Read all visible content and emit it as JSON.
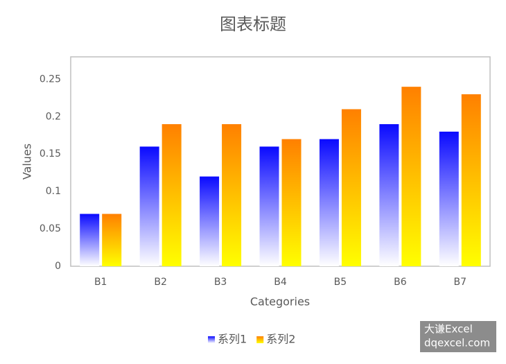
{
  "chart_data": {
    "type": "bar",
    "title": "图表标题",
    "x_label": "Categories",
    "y_label": "Values",
    "categories": [
      "B1",
      "B2",
      "B3",
      "B4",
      "B5",
      "B6",
      "B7"
    ],
    "series": [
      {
        "name": "系列1",
        "color": "#0a0aff",
        "gradient_end": "#ffffff",
        "values": [
          0.07,
          0.16,
          0.12,
          0.16,
          0.17,
          0.19,
          0.18
        ]
      },
      {
        "name": "系列2",
        "color": "#ff8000",
        "gradient_end": "#ffff00",
        "values": [
          0.07,
          0.19,
          0.19,
          0.17,
          0.21,
          0.24,
          0.23
        ]
      }
    ],
    "ylim": [
      0,
      0.28
    ],
    "yticks": [
      0,
      0.05,
      0.1,
      0.15,
      0.2,
      0.25
    ],
    "grid": false,
    "legend": "bottom"
  },
  "watermark": [
    "大谦Excel",
    "dqexcel.com"
  ]
}
